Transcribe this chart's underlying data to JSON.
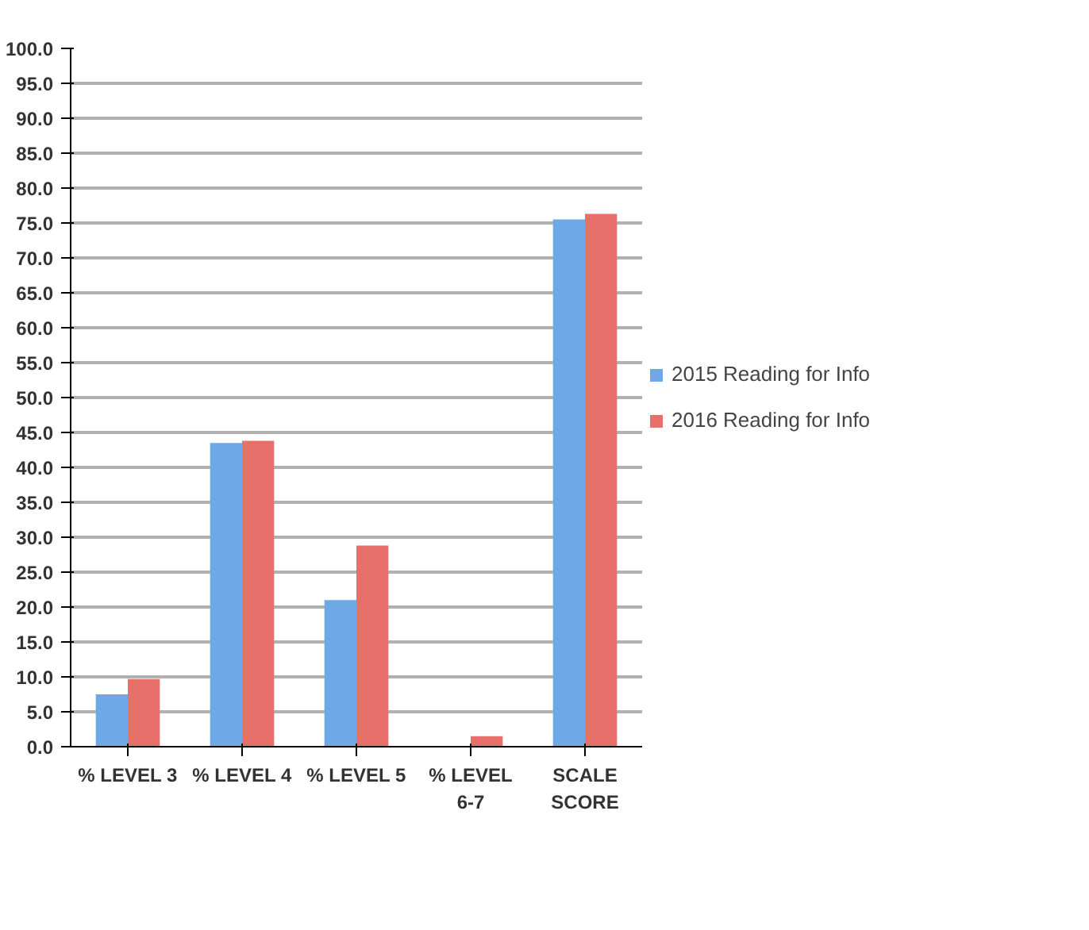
{
  "chart_data": {
    "type": "bar",
    "categories": [
      "% LEVEL 3",
      "% LEVEL 4",
      "% LEVEL 5",
      "% LEVEL 6-7",
      "SCALE SCORE"
    ],
    "series": [
      {
        "name": "2015 Reading for Info",
        "color": "#6fa8e6",
        "values": [
          7.5,
          43.5,
          21.0,
          0,
          75.5
        ]
      },
      {
        "name": "2016 Reading for Info",
        "color": "#e8706a",
        "values": [
          9.7,
          43.8,
          28.8,
          1.5,
          76.3
        ]
      }
    ],
    "ylim": [
      0,
      100
    ],
    "yticks": [
      {
        "value": 0,
        "label": "0.0"
      },
      {
        "value": 5,
        "label": "5.0"
      },
      {
        "value": 10,
        "label": "10.0"
      },
      {
        "value": 15,
        "label": "15.0"
      },
      {
        "value": 20,
        "label": "20.0"
      },
      {
        "value": 25,
        "label": "25.0"
      },
      {
        "value": 30,
        "label": "30.0"
      },
      {
        "value": 35,
        "label": "35.0"
      },
      {
        "value": 40,
        "label": "40.0"
      },
      {
        "value": 45,
        "label": "45.0"
      },
      {
        "value": 50,
        "label": "50.0"
      },
      {
        "value": 55,
        "label": "55.0"
      },
      {
        "value": 60,
        "label": "60.0"
      },
      {
        "value": 65,
        "label": "65.0"
      },
      {
        "value": 70,
        "label": "70.0"
      },
      {
        "value": 75,
        "label": "75.0"
      },
      {
        "value": 80,
        "label": "80.0"
      },
      {
        "value": 85,
        "label": "85.0"
      },
      {
        "value": 90,
        "label": "90.0"
      },
      {
        "value": 95,
        "label": "95.0"
      },
      {
        "value": 100,
        "label": "100.0"
      }
    ],
    "grid": "y",
    "legend": "right"
  }
}
